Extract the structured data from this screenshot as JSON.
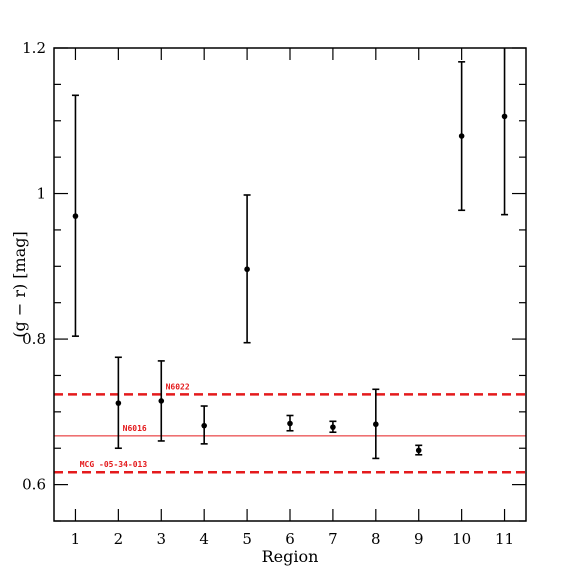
{
  "chart_data": {
    "type": "scatter",
    "title": "",
    "xlabel": "Region",
    "ylabel": "(g − r) [mag]",
    "xlim": [
      0.5,
      11.5
    ],
    "ylim": [
      0.55,
      1.2
    ],
    "x_ticks": [
      1,
      2,
      3,
      4,
      5,
      6,
      7,
      8,
      9,
      10,
      11
    ],
    "x_tick_labels": [
      "1",
      "2",
      "3",
      "4",
      "5",
      "6",
      "7",
      "8",
      "9",
      "10",
      "11"
    ],
    "y_ticks": [
      0.6,
      0.8,
      1.0,
      1.2
    ],
    "y_tick_labels": [
      "0.6",
      "0.8",
      "1",
      "1.2"
    ],
    "y_minor_step": 0.05,
    "grid": false,
    "points": [
      {
        "x": 1,
        "y": 0.969,
        "err_low": 0.165,
        "err_high": 0.166
      },
      {
        "x": 2,
        "y": 0.712,
        "err_low": 0.062,
        "err_high": 0.063
      },
      {
        "x": 3,
        "y": 0.715,
        "err_low": 0.055,
        "err_high": 0.055
      },
      {
        "x": 4,
        "y": 0.681,
        "err_low": 0.025,
        "err_high": 0.027
      },
      {
        "x": 5,
        "y": 0.896,
        "err_low": 0.101,
        "err_high": 0.102
      },
      {
        "x": 6,
        "y": 0.684,
        "err_low": 0.01,
        "err_high": 0.011
      },
      {
        "x": 7,
        "y": 0.679,
        "err_low": 0.007,
        "err_high": 0.008
      },
      {
        "x": 8,
        "y": 0.683,
        "err_low": 0.047,
        "err_high": 0.048
      },
      {
        "x": 9,
        "y": 0.647,
        "err_low": 0.006,
        "err_high": 0.007
      },
      {
        "x": 10,
        "y": 1.079,
        "err_low": 0.102,
        "err_high": 0.102
      },
      {
        "x": 11,
        "y": 1.106,
        "err_low": 0.135,
        "err_high": 0.135
      }
    ],
    "reference_lines": [
      {
        "name": "N6022",
        "y": 0.724,
        "style": "dashed-thick",
        "color": "#e41a1c"
      },
      {
        "name": "N6016",
        "y": 0.667,
        "style": "thin",
        "color": "#e41a1c"
      },
      {
        "name": "MCG -05-34-013",
        "y": 0.617,
        "style": "dashed-thick",
        "color": "#e41a1c"
      }
    ]
  }
}
